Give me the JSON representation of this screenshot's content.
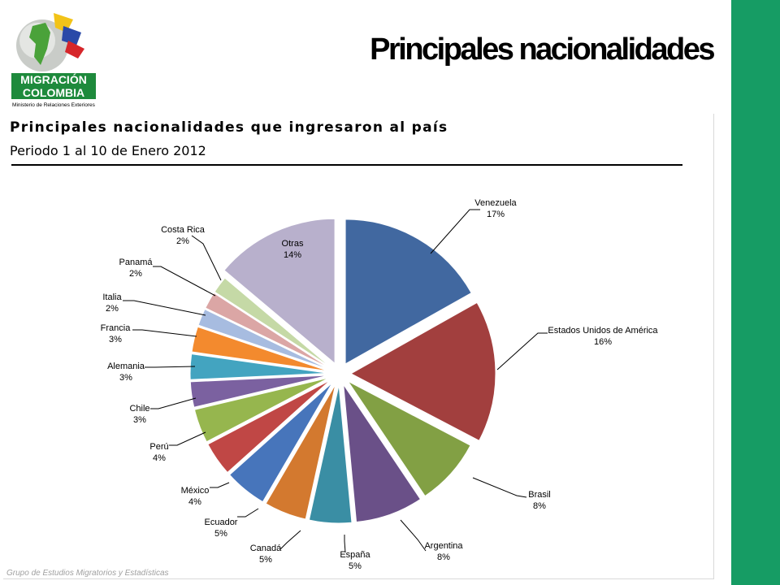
{
  "slide": {
    "title": "Principales nacionalidades",
    "footer": "Grupo de Estudios Migratorios y Estadísticas"
  },
  "logo": {
    "line1": "MIGRACIÓN",
    "line2": "COLOMBIA",
    "line3": "Ministerio de Relaciones Exteriores"
  },
  "colors": {
    "accent_band": "#169c64",
    "logo_green": "#1e8a3c"
  },
  "chart_data": {
    "type": "pie",
    "title": "Principales nacionalidades que ingresaron al país",
    "subtitle": "Periodo 1 al 10 de Enero 2012",
    "legend": "none",
    "slices": [
      {
        "label": "Venezuela",
        "pct_label": "17%",
        "value": 17,
        "color": "#4168a0"
      },
      {
        "label": "Estados Unidos de América",
        "pct_label": "16%",
        "value": 16,
        "color": "#a23f3e"
      },
      {
        "label": "Brasil",
        "pct_label": "8%",
        "value": 8,
        "color": "#82a044"
      },
      {
        "label": "Argentina",
        "pct_label": "8%",
        "value": 8,
        "color": "#6a5088"
      },
      {
        "label": "España",
        "pct_label": "5%",
        "value": 5,
        "color": "#3a8ea4"
      },
      {
        "label": "Canadá",
        "pct_label": "5%",
        "value": 5,
        "color": "#d3792f"
      },
      {
        "label": "Ecuador",
        "pct_label": "5%",
        "value": 5,
        "color": "#4775bb"
      },
      {
        "label": "México",
        "pct_label": "4%",
        "value": 4,
        "color": "#c04745"
      },
      {
        "label": "Perú",
        "pct_label": "4%",
        "value": 4,
        "color": "#96b64e"
      },
      {
        "label": "Chile",
        "pct_label": "3%",
        "value": 3,
        "color": "#7b61a0"
      },
      {
        "label": "Alemania",
        "pct_label": "3%",
        "value": 3,
        "color": "#43a4c0"
      },
      {
        "label": "Francia",
        "pct_label": "3%",
        "value": 3,
        "color": "#f38a2e"
      },
      {
        "label": "Italia",
        "pct_label": "2%",
        "value": 2,
        "color": "#a7bce0"
      },
      {
        "label": "Panamá",
        "pct_label": "2%",
        "value": 2,
        "color": "#dba6a5"
      },
      {
        "label": "Costa Rica",
        "pct_label": "2%",
        "value": 2,
        "color": "#c5d9a6"
      },
      {
        "label": "Otras",
        "pct_label": "14%",
        "value": 14,
        "color": "#b8b0cc"
      }
    ]
  }
}
